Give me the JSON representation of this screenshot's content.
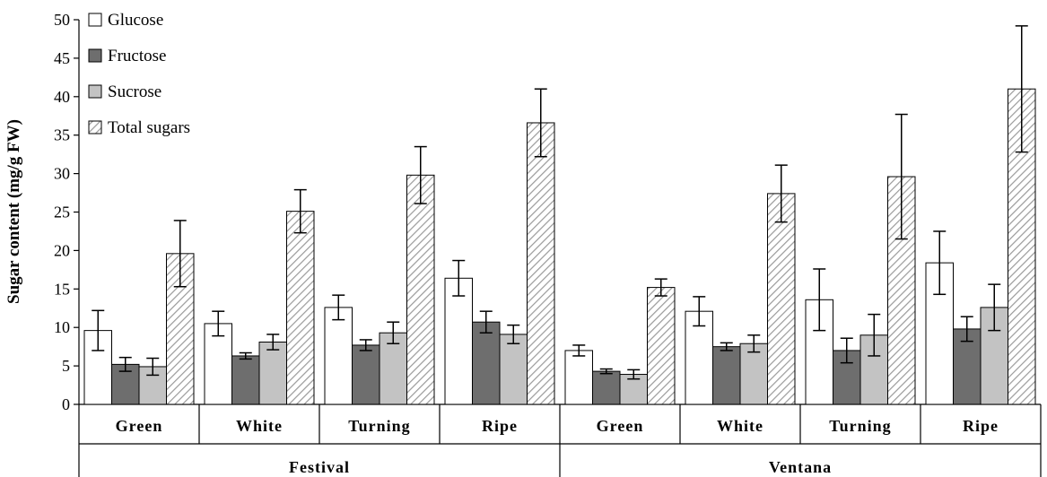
{
  "chart_data": {
    "type": "bar",
    "ylabel": "Sugar content (mg/g FW)",
    "xlabel": "",
    "ylim": [
      0,
      50
    ],
    "yticks": [
      0,
      5,
      10,
      15,
      20,
      25,
      30,
      35,
      40,
      45,
      50
    ],
    "grid": false,
    "legend_position": "top-left",
    "groups": [
      {
        "name": "Festival",
        "categories": [
          "Green",
          "White",
          "Turning",
          "Ripe"
        ]
      },
      {
        "name": "Ventana",
        "categories": [
          "Green",
          "White",
          "Turning",
          "Ripe"
        ]
      }
    ],
    "categories": [
      "Green",
      "White",
      "Turning",
      "Ripe",
      "Green",
      "White",
      "Turning",
      "Ripe"
    ],
    "series": [
      {
        "name": "Glucose",
        "style": "white",
        "values": [
          9.6,
          10.5,
          12.6,
          16.4,
          7.0,
          12.1,
          13.6,
          18.4
        ],
        "errors": [
          2.6,
          1.6,
          1.6,
          2.3,
          0.7,
          1.9,
          4.0,
          4.1
        ]
      },
      {
        "name": "Fructose",
        "style": "dark",
        "values": [
          5.2,
          6.3,
          7.7,
          10.7,
          4.3,
          7.5,
          7.0,
          9.8
        ],
        "errors": [
          0.9,
          0.4,
          0.7,
          1.4,
          0.3,
          0.5,
          1.6,
          1.6
        ]
      },
      {
        "name": "Sucrose",
        "style": "light",
        "values": [
          4.9,
          8.1,
          9.3,
          9.1,
          3.9,
          7.9,
          9.0,
          12.6
        ],
        "errors": [
          1.1,
          1.0,
          1.4,
          1.2,
          0.6,
          1.1,
          2.7,
          3.0
        ]
      },
      {
        "name": "Total sugars",
        "style": "hatched",
        "values": [
          19.6,
          25.1,
          29.8,
          36.6,
          15.2,
          27.4,
          29.6,
          41.0
        ],
        "errors": [
          4.3,
          2.8,
          3.7,
          4.4,
          1.1,
          3.7,
          8.1,
          8.2
        ]
      }
    ],
    "colors": {
      "white": "#ffffff",
      "dark": "#6e6e6e",
      "light": "#c3c3c3",
      "stroke": "#000000"
    }
  }
}
